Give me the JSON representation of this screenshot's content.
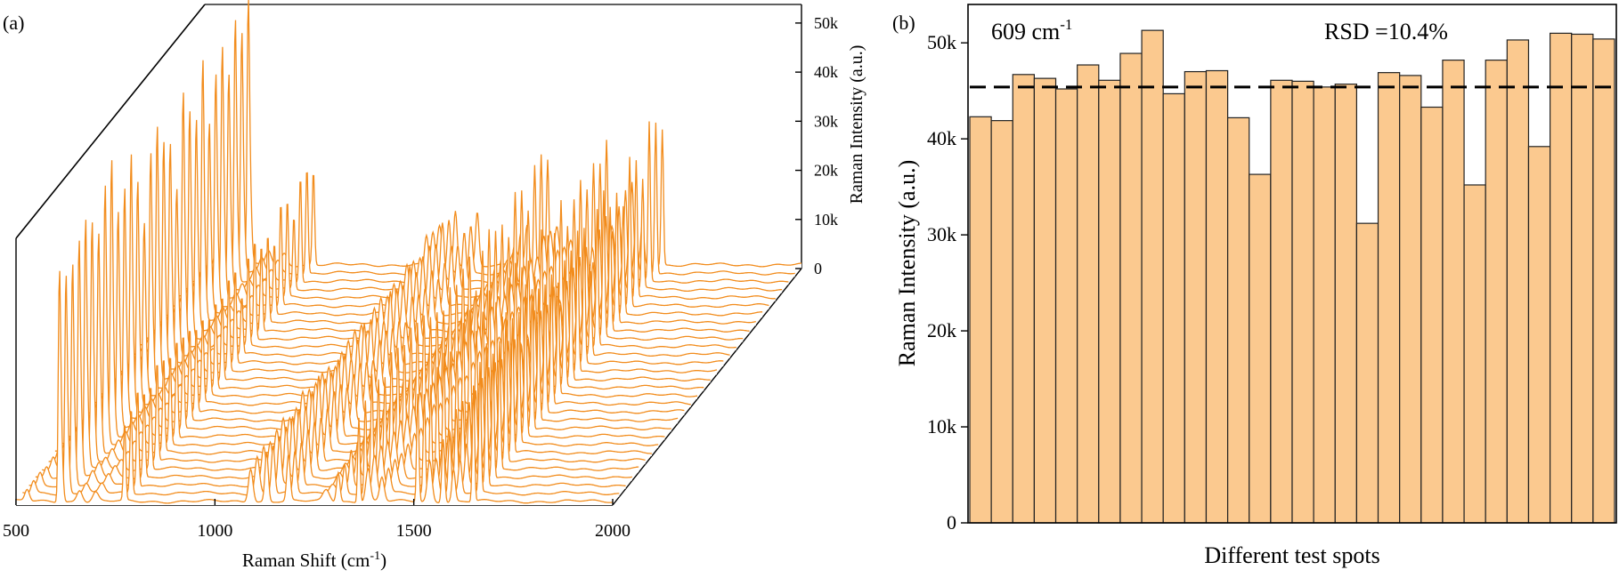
{
  "colors": {
    "spectrum": "#f28c1c",
    "bar_fill": "#fbc98f",
    "bar_edge": "#222222",
    "axis": "#000000"
  },
  "panel_a": {
    "label": "(a)",
    "chart_data": {
      "type": "line",
      "title": "",
      "xlabel": "Raman Shift (cm",
      "xlabel_sup": "-1",
      "xlabel_end": ")",
      "ylabel": "Raman Intensity (a.u.)",
      "xlim": [
        500,
        2000
      ],
      "ylim": [
        0,
        50000
      ],
      "x_ticks": [
        500,
        1000,
        1500,
        2000
      ],
      "x_tick_labels": [
        "500",
        "1000",
        "1500",
        "2000"
      ],
      "z_ticks": [
        0,
        10000,
        20000,
        30000,
        40000,
        50000
      ],
      "z_tick_labels": [
        "0",
        "10k",
        "20k",
        "30k",
        "40k",
        "50k"
      ],
      "series_count": 30,
      "peaks": [
        {
          "pos": 528,
          "height": 3000,
          "width": 8
        },
        {
          "pos": 609,
          "height": 45000,
          "width": 4
        },
        {
          "pos": 613,
          "height": 18000,
          "width": 6
        },
        {
          "pos": 660,
          "height": 3000,
          "width": 10
        },
        {
          "pos": 700,
          "height": 2500,
          "width": 10
        },
        {
          "pos": 773,
          "height": 22000,
          "width": 4
        },
        {
          "pos": 1090,
          "height": 9000,
          "width": 8
        },
        {
          "pos": 1130,
          "height": 12000,
          "width": 6
        },
        {
          "pos": 1185,
          "height": 11000,
          "width": 6
        },
        {
          "pos": 1280,
          "height": 3000,
          "width": 12
        },
        {
          "pos": 1310,
          "height": 8000,
          "width": 6
        },
        {
          "pos": 1362,
          "height": 24000,
          "width": 4
        },
        {
          "pos": 1385,
          "height": 9000,
          "width": 8
        },
        {
          "pos": 1420,
          "height": 6000,
          "width": 8
        },
        {
          "pos": 1510,
          "height": 26000,
          "width": 4
        },
        {
          "pos": 1540,
          "height": 10000,
          "width": 8
        },
        {
          "pos": 1574,
          "height": 17000,
          "width": 5
        },
        {
          "pos": 1600,
          "height": 9000,
          "width": 6
        },
        {
          "pos": 1650,
          "height": 32000,
          "width": 4
        }
      ],
      "series_scale": [
        0.93,
        0.92,
        1.02,
        1.01,
        0.99,
        1.04,
        1.01,
        1.07,
        1.12,
        0.98,
        1.03,
        1.03,
        0.93,
        0.8,
        1.01,
        1.01,
        0.99,
        1.0,
        0.69,
        1.03,
        1.02,
        0.95,
        1.06,
        0.78,
        1.06,
        1.1,
        0.86,
        1.12,
        1.11,
        1.11
      ]
    }
  },
  "panel_b": {
    "label": "(b)",
    "annotation_value": "609 cm",
    "annotation_sup": "-1",
    "rsd_text": "RSD =10.4%",
    "chart_data": {
      "type": "bar",
      "title": "",
      "xlabel": "Different test spots",
      "ylabel": "Raman Intensity (a.u.)",
      "ylim": [
        0,
        54000
      ],
      "y_ticks": [
        0,
        10000,
        20000,
        30000,
        40000,
        50000
      ],
      "y_tick_labels": [
        "0",
        "10k",
        "20k",
        "30k",
        "40k",
        "50k"
      ],
      "values": [
        42300,
        41900,
        46700,
        46300,
        45200,
        47700,
        46100,
        48900,
        51300,
        44700,
        47000,
        47100,
        42200,
        36300,
        46100,
        46000,
        45400,
        45700,
        31200,
        46900,
        46600,
        43300,
        48200,
        35200,
        48200,
        50300,
        39200,
        51000,
        50900,
        50400
      ],
      "mean_line": 45400
    }
  }
}
